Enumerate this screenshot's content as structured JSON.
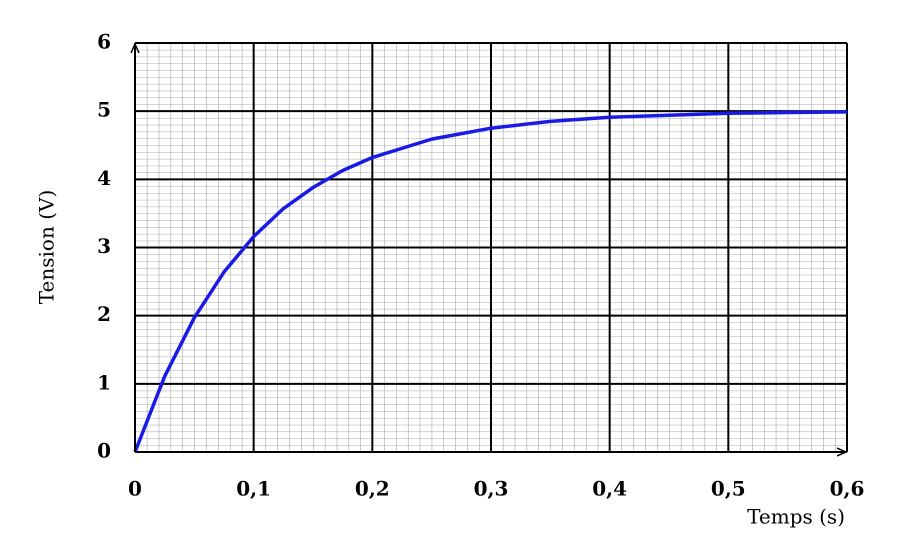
{
  "chart_data": {
    "type": "line",
    "x_label": "Temps (s)",
    "y_label": "Tension (V)",
    "x": [
      0,
      0.025,
      0.05,
      0.075,
      0.1,
      0.125,
      0.15,
      0.175,
      0.2,
      0.25,
      0.3,
      0.35,
      0.4,
      0.45,
      0.5,
      0.55,
      0.6
    ],
    "series": [
      {
        "color": "#1a1ae6",
        "values": [
          0,
          1.11,
          1.97,
          2.64,
          3.16,
          3.57,
          3.88,
          4.13,
          4.32,
          4.59,
          4.75,
          4.85,
          4.91,
          4.94,
          4.97,
          4.98,
          4.99
        ]
      }
    ],
    "xlim": [
      0,
      0.6
    ],
    "ylim": [
      0,
      6
    ],
    "xticks": [
      0,
      {
        "value": 0.1,
        "label": "0,1"
      },
      {
        "value": 0.2,
        "label": "0,2"
      },
      {
        "value": 0.3,
        "label": "0,3"
      },
      {
        "value": 0.4,
        "label": "0,4"
      },
      {
        "value": 0.5,
        "label": "0,5"
      },
      {
        "value": 0.6,
        "label": "0,6"
      }
    ],
    "yticks": [
      0,
      1,
      2,
      3,
      4,
      5,
      6
    ],
    "grid": true
  }
}
